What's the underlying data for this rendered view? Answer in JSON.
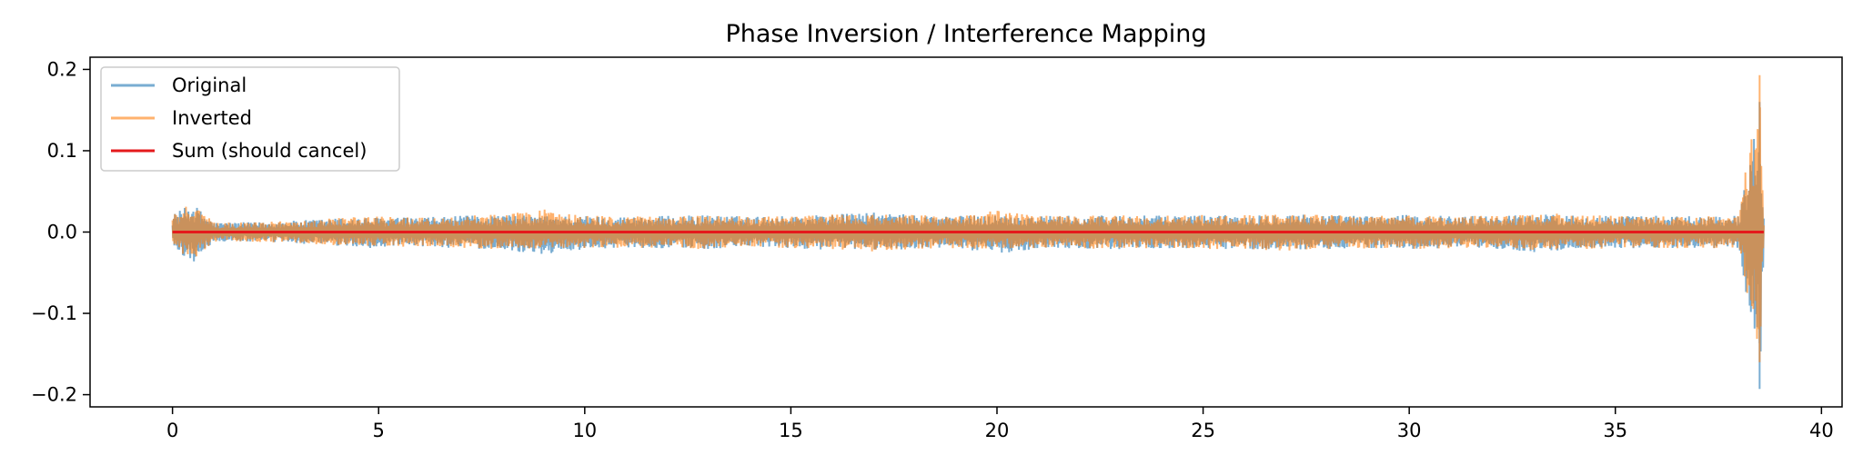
{
  "chart_data": {
    "type": "line",
    "title": "Phase Inversion / Interference Mapping",
    "xlabel": "",
    "ylabel": "",
    "xlim": [
      -2,
      40.5
    ],
    "ylim": [
      -0.215,
      0.215
    ],
    "x_ticks": [
      0,
      5,
      10,
      15,
      20,
      25,
      30,
      35,
      40
    ],
    "x_tick_labels": [
      "0",
      "5",
      "10",
      "15",
      "20",
      "25",
      "30",
      "35",
      "40"
    ],
    "y_ticks": [
      0.2,
      0.1,
      0.0,
      -0.1,
      -0.2
    ],
    "y_tick_labels": [
      "0.2",
      "0.1",
      "0.0",
      "−0.1",
      "−0.2"
    ],
    "grid": false,
    "legend_position": "upper-left",
    "signal_duration": 38.6,
    "series": [
      {
        "name": "Original",
        "color": "#1f77b4",
        "alpha": 0.6,
        "envelope": {
          "x": [
            0,
            0.5,
            1,
            2,
            3,
            4,
            5,
            6,
            7,
            8,
            9,
            10,
            11,
            12,
            13,
            14,
            15,
            16,
            17,
            18,
            19,
            20,
            21,
            22,
            23,
            24,
            25,
            26,
            27,
            28,
            29,
            30,
            31,
            32,
            33,
            34,
            35,
            36,
            37,
            38,
            38.5,
            38.6
          ],
          "max": [
            0.022,
            0.035,
            0.012,
            0.012,
            0.014,
            0.017,
            0.018,
            0.018,
            0.02,
            0.021,
            0.02,
            0.02,
            0.019,
            0.02,
            0.021,
            0.019,
            0.02,
            0.022,
            0.024,
            0.021,
            0.02,
            0.021,
            0.02,
            0.02,
            0.021,
            0.02,
            0.021,
            0.021,
            0.023,
            0.021,
            0.02,
            0.021,
            0.02,
            0.02,
            0.022,
            0.021,
            0.02,
            0.02,
            0.02,
            0.02,
            0.16,
            0.02
          ],
          "min": [
            -0.02,
            -0.038,
            -0.012,
            -0.012,
            -0.014,
            -0.018,
            -0.02,
            -0.018,
            -0.02,
            -0.022,
            -0.028,
            -0.021,
            -0.019,
            -0.02,
            -0.021,
            -0.019,
            -0.02,
            -0.022,
            -0.022,
            -0.021,
            -0.02,
            -0.027,
            -0.02,
            -0.02,
            -0.021,
            -0.02,
            -0.021,
            -0.021,
            -0.022,
            -0.021,
            -0.02,
            -0.021,
            -0.02,
            -0.02,
            -0.025,
            -0.021,
            -0.02,
            -0.02,
            -0.02,
            -0.02,
            -0.193,
            -0.02
          ]
        }
      },
      {
        "name": "Inverted",
        "color": "#ff7f0e",
        "alpha": 0.6,
        "envelope": {
          "x": [
            0,
            0.5,
            1,
            2,
            3,
            4,
            5,
            6,
            7,
            8,
            9,
            10,
            11,
            12,
            13,
            14,
            15,
            16,
            17,
            18,
            19,
            20,
            21,
            22,
            23,
            24,
            25,
            26,
            27,
            28,
            29,
            30,
            31,
            32,
            33,
            34,
            35,
            36,
            37,
            38,
            38.5,
            38.6
          ],
          "max": [
            0.02,
            0.038,
            0.012,
            0.012,
            0.014,
            0.018,
            0.02,
            0.018,
            0.02,
            0.022,
            0.028,
            0.021,
            0.019,
            0.02,
            0.021,
            0.019,
            0.02,
            0.022,
            0.022,
            0.021,
            0.02,
            0.027,
            0.02,
            0.02,
            0.021,
            0.02,
            0.021,
            0.021,
            0.022,
            0.021,
            0.02,
            0.021,
            0.02,
            0.02,
            0.025,
            0.021,
            0.02,
            0.02,
            0.02,
            0.02,
            0.193,
            0.02
          ],
          "min": [
            -0.022,
            -0.035,
            -0.012,
            -0.012,
            -0.014,
            -0.017,
            -0.018,
            -0.018,
            -0.02,
            -0.021,
            -0.02,
            -0.02,
            -0.019,
            -0.02,
            -0.021,
            -0.019,
            -0.02,
            -0.022,
            -0.024,
            -0.021,
            -0.02,
            -0.021,
            -0.02,
            -0.02,
            -0.021,
            -0.02,
            -0.021,
            -0.021,
            -0.023,
            -0.021,
            -0.02,
            -0.021,
            -0.02,
            -0.02,
            -0.022,
            -0.021,
            -0.02,
            -0.02,
            -0.02,
            -0.02,
            -0.16,
            -0.02
          ]
        }
      },
      {
        "name": "Sum (should cancel)",
        "color": "#e41a1c",
        "alpha": 1.0,
        "x": [
          0,
          38.6
        ],
        "y": [
          0,
          0
        ]
      }
    ]
  }
}
